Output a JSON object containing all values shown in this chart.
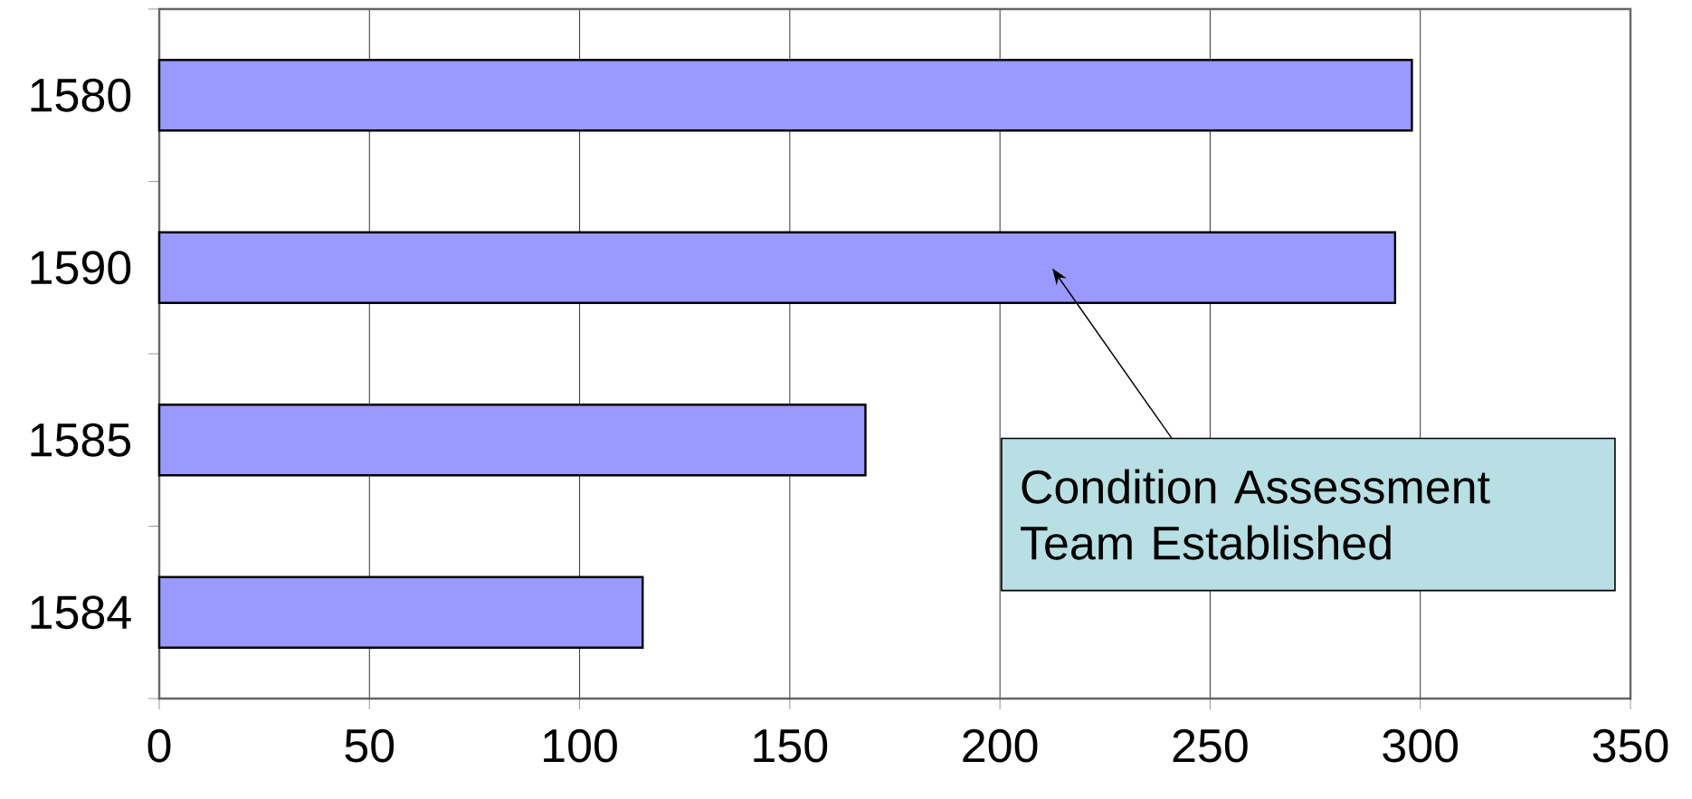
{
  "chart_data": {
    "type": "bar",
    "orientation": "horizontal",
    "categories": [
      "1580",
      "1590",
      "1585",
      "1584"
    ],
    "values": [
      298,
      294,
      168,
      115
    ],
    "color": "#9999ff",
    "xlim": [
      0,
      350
    ],
    "xticks": [
      0,
      50,
      100,
      150,
      200,
      250,
      300,
      350
    ],
    "grid": "x",
    "annotations": [
      "Condition Assessment Team Established"
    ]
  }
}
